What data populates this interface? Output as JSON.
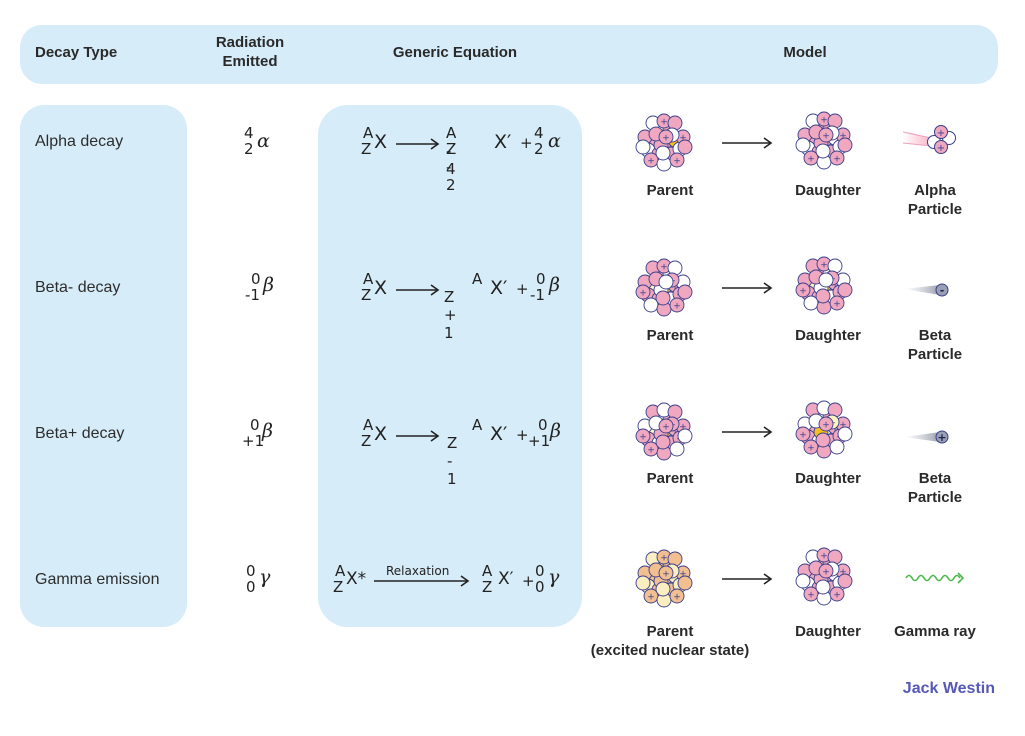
{
  "header": {
    "decay_type": "Decay Type",
    "radiation_line1": "Radiation",
    "radiation_line2": "Emitted",
    "equation": "Generic Equation",
    "model": "Model"
  },
  "rows": [
    {
      "decay_type": "Alpha decay",
      "radiation": {
        "mass": "4",
        "charge": "2",
        "symbol": "α"
      },
      "equation": {
        "parent_mass": "A",
        "parent_charge": "Z",
        "parent_symbol": "X",
        "daughter_mass": "A - 4",
        "daughter_charge": "Z - 2",
        "daughter_symbol": "X′",
        "plus": "+",
        "emitted_mass": "4",
        "emitted_charge": "2",
        "emitted_symbol": "α"
      },
      "captions": {
        "parent": "Parent",
        "daughter": "Daughter",
        "particle_line1": "Alpha",
        "particle_line2": "Particle"
      }
    },
    {
      "decay_type": "Beta- decay",
      "radiation": {
        "mass": "0",
        "charge": "-1",
        "symbol": "β"
      },
      "equation": {
        "parent_mass": "A",
        "parent_charge": "Z",
        "parent_symbol": "X",
        "daughter_mass": "A",
        "daughter_charge": "Z + 1",
        "daughter_symbol": "X′",
        "plus": "+",
        "emitted_mass": "0",
        "emitted_charge": "-1",
        "emitted_symbol": "β"
      },
      "captions": {
        "parent": "Parent",
        "daughter": "Daughter",
        "particle_line1": "Beta",
        "particle_line2": "Particle"
      }
    },
    {
      "decay_type": "Beta+ decay",
      "radiation": {
        "mass": "0",
        "charge": "+1",
        "symbol": "β"
      },
      "equation": {
        "parent_mass": "A",
        "parent_charge": "Z",
        "parent_symbol": "X",
        "daughter_mass": "A",
        "daughter_charge": "Z - 1",
        "daughter_symbol": "X′",
        "plus": "+",
        "emitted_mass": "0",
        "emitted_charge": "+1",
        "emitted_symbol": "β"
      },
      "captions": {
        "parent": "Parent",
        "daughter": "Daughter",
        "particle_line1": "Beta",
        "particle_line2": "Particle"
      }
    },
    {
      "decay_type": "Gamma emission",
      "radiation": {
        "mass": "0",
        "charge": "0",
        "symbol": "γ"
      },
      "equation": {
        "parent_mass": "A",
        "parent_charge": "Z",
        "parent_symbol": "X*",
        "arrow_label": "Relaxation",
        "daughter_mass": "A",
        "daughter_charge": "Z",
        "daughter_symbol": "X′",
        "plus": "+",
        "emitted_mass": "0",
        "emitted_charge": "0",
        "emitted_symbol": "γ"
      },
      "captions": {
        "parent": "Parent",
        "parent_line2": "(excited nuclear state)",
        "daughter": "Daughter",
        "particle_line1": "Gamma ray"
      }
    }
  ],
  "particle_signs": {
    "electron": "-",
    "positron": "+"
  },
  "colors": {
    "panel": "#d6ecf8",
    "proton": "#f0a8c0",
    "neutron": "#ffffff",
    "highlight_proton": "#f5c020",
    "highlight_neutron": "#fbf3c0",
    "excited": "#f2c090",
    "gamma_wave": "#4cb84c",
    "brand": "#5558b8"
  },
  "brand": "Jack Westin"
}
